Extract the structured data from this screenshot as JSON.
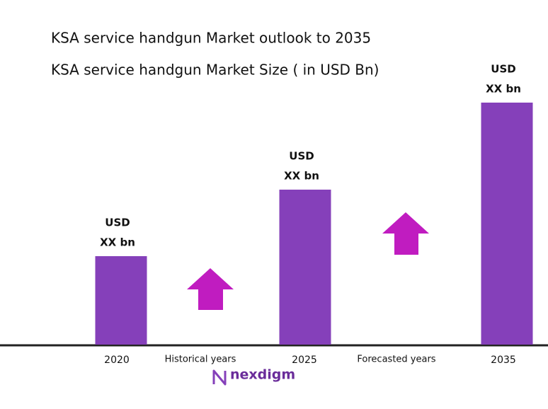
{
  "chart_data": {
    "type": "bar",
    "title": "KSA service handgun Market outlook to 2035",
    "subtitle": "KSA service handgun Market Size ( in USD Bn)",
    "categories": [
      "2020",
      "2025",
      "2035"
    ],
    "values": [
      125,
      219,
      342
    ],
    "value_labels": [
      [
        "USD",
        "XX bn"
      ],
      [
        "USD",
        "XX bn"
      ],
      [
        "USD",
        "XX bn"
      ]
    ],
    "color": "#8540ba",
    "ylim": [
      0,
      350
    ],
    "annotations": [
      "Historical years",
      "Forecasted years"
    ],
    "logo": "nexdigm"
  }
}
